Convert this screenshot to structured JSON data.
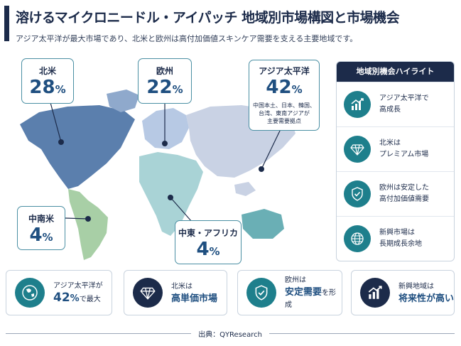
{
  "header": {
    "title": "溶けるマイクロニードル・アイパッチ 地域別市場構図と市場機会",
    "subtitle": "アジア太平洋が最大市場であり、北米と欧州は高付加価値スキンケア需要を支える主要地域です。"
  },
  "regions": [
    {
      "name": "北米",
      "value": "28",
      "unit": "%",
      "color": "#5b7fad"
    },
    {
      "name": "欧州",
      "value": "22",
      "unit": "%",
      "color": "#b7c9e4"
    },
    {
      "name": "アジア太平洋",
      "value": "42",
      "unit": "%",
      "note_line1": "中国本土、日本、韓国、",
      "note_line2": "台湾、東南アジアが",
      "note_line3": "主要需要拠点",
      "color": "#c9d2e4"
    },
    {
      "name": "中南米",
      "value": "4",
      "unit": "%",
      "color": "#a8cfa6"
    },
    {
      "name": "中東・アフリカ",
      "value": "4",
      "unit": "%",
      "color": "#a9d3d6"
    }
  ],
  "highlights": {
    "heading": "地域別機会ハイライト",
    "items": [
      {
        "icon": "growth-chart-icon",
        "line1": "アジア太平洋で",
        "line2": "高成長"
      },
      {
        "icon": "diamond-icon",
        "line1": "北米は",
        "line2": "プレミアム市場"
      },
      {
        "icon": "shield-check-icon",
        "line1": "欧州は安定した",
        "line2": "高付加価値需要"
      },
      {
        "icon": "globe-icon",
        "line1": "新興市場は",
        "line2": "長期成長余地"
      }
    ]
  },
  "bottom": [
    {
      "icon": "asia-globe-icon",
      "line1": "アジア太平洋が",
      "value": "42",
      "unit": "%",
      "suffix": "で最大",
      "icon_bg": "#1e7f8c"
    },
    {
      "icon": "diamond-icon",
      "line1": "北米は",
      "line2": "高単価市場",
      "icon_bg": "#1c2b4a"
    },
    {
      "icon": "shield-check-icon",
      "line1": "欧州は",
      "line2": "安定需要",
      "suffix": "を形成",
      "icon_bg": "#1e7f8c"
    },
    {
      "icon": "growth-chart-icon",
      "line1": "新興地域は",
      "line2": "将来性が高い",
      "icon_bg": "#1c2b4a"
    }
  ],
  "footer": {
    "source": "出典：QYResearch"
  },
  "colors": {
    "navy": "#1c2b4a",
    "teal": "#1e7f8c",
    "value_blue": "#1f4f80",
    "card_border": "#4a8fa3"
  }
}
